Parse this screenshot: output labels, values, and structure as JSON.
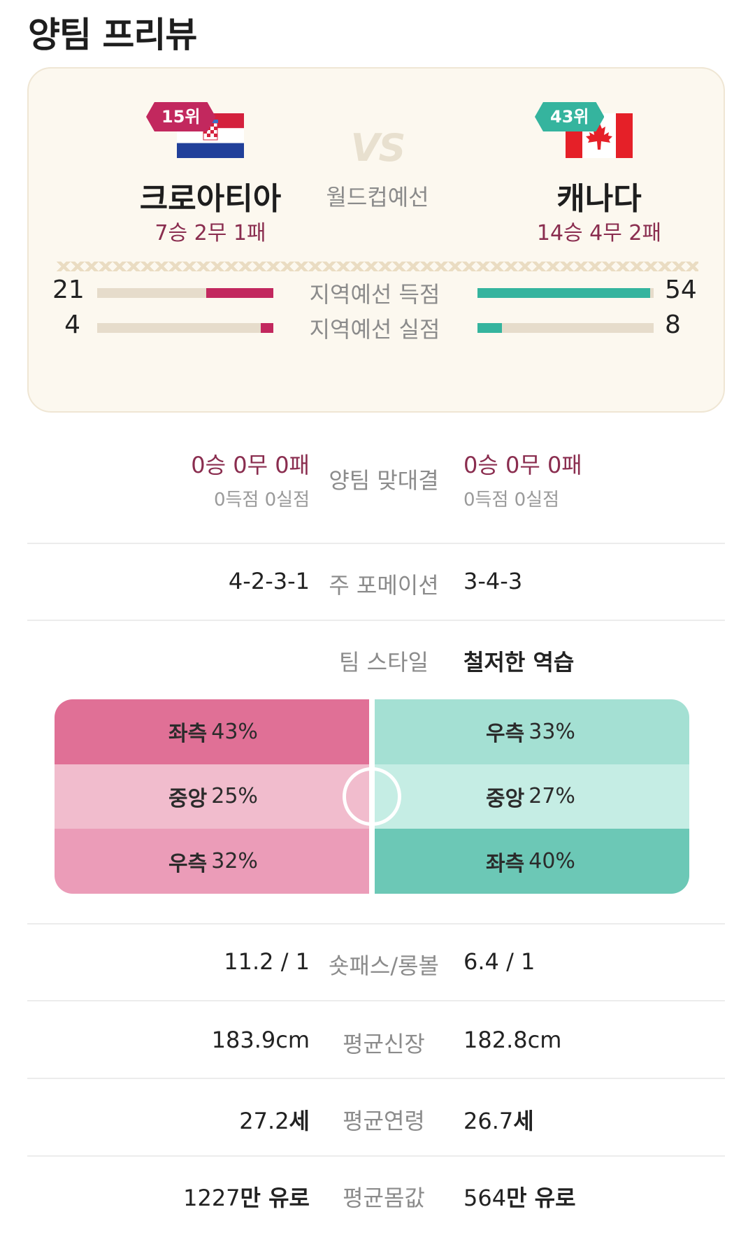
{
  "page_title": "양팀 프리뷰",
  "match": {
    "vs": "VS",
    "competition": "월드컵예선"
  },
  "home": {
    "rank": "15위",
    "name": "크로아티아",
    "record": "7승 2무 1패",
    "flag_icon": "croatia-flag-icon",
    "color": "#c2285e"
  },
  "away": {
    "rank": "43위",
    "name": "캐나다",
    "record": "14승 4무 2패",
    "flag_icon": "canada-flag-icon",
    "color": "#35b49e"
  },
  "qual_stats": [
    {
      "label": "지역예선 득점",
      "home": "21",
      "away": "54",
      "home_ratio": 0.38,
      "away_ratio": 0.98
    },
    {
      "label": "지역예선 실점",
      "home": "4",
      "away": "8",
      "home_ratio": 0.07,
      "away_ratio": 0.14
    }
  ],
  "head_to_head": {
    "label": "양팀 맞대결",
    "home_record": "0승 0무 0패",
    "home_goals": "0득점 0실점",
    "away_record": "0승 0무 0패",
    "away_goals": "0득점 0실점"
  },
  "formation": {
    "label": "주 포메이션",
    "home": "4-2-3-1",
    "away": "3-4-3"
  },
  "team_style": {
    "label": "팀 스타일",
    "home": "",
    "away": "철저한 역습",
    "home_zones": [
      {
        "name": "좌측",
        "pct": "43%",
        "color": "#e07096"
      },
      {
        "name": "중앙",
        "pct": "25%",
        "color": "#f1bccd"
      },
      {
        "name": "우측",
        "pct": "32%",
        "color": "#eb9cb8"
      }
    ],
    "away_zones": [
      {
        "name": "우측",
        "pct": "33%",
        "color": "#a4e0d3"
      },
      {
        "name": "중앙",
        "pct": "27%",
        "color": "#c5ede4"
      },
      {
        "name": "좌측",
        "pct": "40%",
        "color": "#6cc8b6"
      }
    ]
  },
  "pass_ratio": {
    "label": "숏패스/롱볼",
    "home": "11.2 / 1",
    "away": "6.4 / 1"
  },
  "avg_height": {
    "label": "평균신장",
    "home": "183.9cm",
    "away": "182.8cm"
  },
  "avg_age": {
    "label": "평균연령",
    "home_num": "27.2",
    "home_unit": "세",
    "away_num": "26.7",
    "away_unit": "세"
  },
  "avg_value": {
    "label": "평균몸값",
    "home_num": "1227",
    "home_unit": "만 유로",
    "away_num": "564",
    "away_unit": "만 유로"
  }
}
